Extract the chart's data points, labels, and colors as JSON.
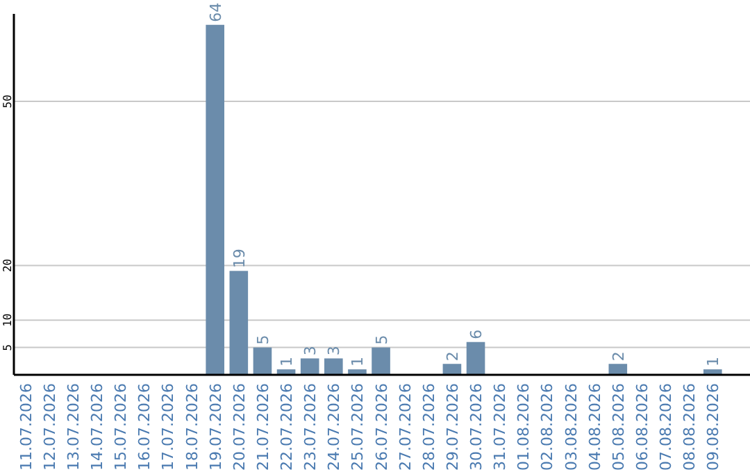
{
  "chart_data": {
    "type": "bar",
    "categories": [
      "11.07.2026",
      "12.07.2026",
      "13.07.2026",
      "14.07.2026",
      "15.07.2026",
      "16.07.2026",
      "17.07.2026",
      "18.07.2026",
      "19.07.2026",
      "20.07.2026",
      "21.07.2026",
      "22.07.2026",
      "23.07.2026",
      "24.07.2026",
      "25.07.2026",
      "26.07.2026",
      "27.07.2026",
      "28.07.2026",
      "29.07.2026",
      "30.07.2026",
      "31.07.2026",
      "01.08.2026",
      "02.08.2026",
      "03.08.2026",
      "04.08.2026",
      "05.08.2026",
      "06.08.2026",
      "07.08.2026",
      "08.08.2026",
      "09.08.2026"
    ],
    "values": [
      0,
      0,
      0,
      0,
      0,
      0,
      0,
      0,
      64,
      19,
      5,
      1,
      3,
      3,
      1,
      5,
      0,
      0,
      2,
      6,
      0,
      0,
      0,
      0,
      0,
      2,
      0,
      0,
      0,
      1
    ],
    "value_labels": [
      null,
      null,
      null,
      null,
      null,
      null,
      null,
      null,
      "64",
      "19",
      "5",
      "1",
      "3",
      "3",
      "1",
      "5",
      null,
      null,
      "2",
      "6",
      null,
      null,
      null,
      null,
      null,
      "2",
      null,
      null,
      null,
      "1"
    ],
    "color": "#6b8cab",
    "ylim": [
      0,
      66
    ],
    "yticks": [
      5,
      10,
      20,
      50
    ],
    "grid": "y"
  }
}
